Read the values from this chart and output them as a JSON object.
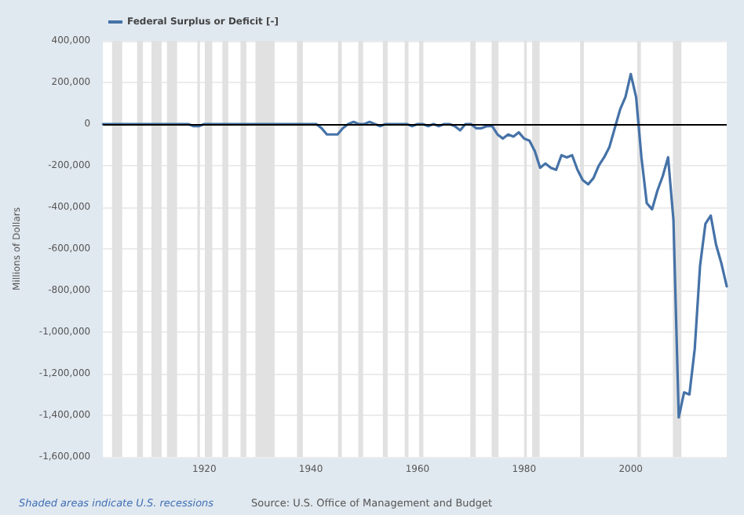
{
  "chart_data": {
    "type": "line",
    "ylabel": "Millions of Dollars",
    "x": [
      1901,
      1902,
      1903,
      1904,
      1905,
      1906,
      1907,
      1908,
      1909,
      1910,
      1911,
      1912,
      1913,
      1914,
      1915,
      1916,
      1917,
      1918,
      1919,
      1920,
      1921,
      1922,
      1923,
      1924,
      1925,
      1926,
      1927,
      1928,
      1929,
      1930,
      1931,
      1932,
      1933,
      1934,
      1935,
      1936,
      1937,
      1938,
      1939,
      1940,
      1941,
      1942,
      1943,
      1944,
      1945,
      1946,
      1947,
      1948,
      1949,
      1950,
      1951,
      1952,
      1953,
      1954,
      1955,
      1956,
      1957,
      1958,
      1959,
      1960,
      1961,
      1962,
      1963,
      1964,
      1965,
      1966,
      1967,
      1968,
      1969,
      1970,
      1971,
      1972,
      1973,
      1974,
      1975,
      1976,
      1977,
      1978,
      1979,
      1980,
      1981,
      1982,
      1983,
      1984,
      1985,
      1986,
      1987,
      1988,
      1989,
      1990,
      1991,
      1992,
      1993,
      1994,
      1995,
      1996,
      1997,
      1998,
      1999,
      2000,
      2001,
      2002,
      2003,
      2004,
      2005,
      2006,
      2007,
      2008,
      2009,
      2010,
      2011,
      2012,
      2013,
      2014,
      2015,
      2016,
      2017,
      2018
    ],
    "series": [
      {
        "name": "Federal Surplus or Deficit [-]",
        "color": "#4572a7",
        "values": [
          0,
          0,
          0,
          0,
          0,
          0,
          0,
          0,
          0,
          0,
          0,
          0,
          0,
          0,
          0,
          0,
          0,
          -10000,
          -10000,
          0,
          0,
          0,
          0,
          0,
          0,
          0,
          0,
          0,
          0,
          0,
          0,
          0,
          0,
          0,
          0,
          0,
          0,
          0,
          0,
          0,
          0,
          -20000,
          -50000,
          -50000,
          -50000,
          -20000,
          0,
          10000,
          0,
          0,
          10000,
          0,
          -10000,
          0,
          0,
          0,
          0,
          0,
          -10000,
          0,
          0,
          -10000,
          0,
          -10000,
          0,
          0,
          -10000,
          -30000,
          0,
          0,
          -20000,
          -20000,
          -10000,
          -10000,
          -50000,
          -70000,
          -50000,
          -60000,
          -40000,
          -70000,
          -80000,
          -130000,
          -210000,
          -190000,
          -210000,
          -220000,
          -150000,
          -160000,
          -150000,
          -220000,
          -270000,
          -290000,
          -260000,
          -200000,
          -160000,
          -110000,
          -20000,
          70000,
          130000,
          240000,
          130000,
          -160000,
          -380000,
          -410000,
          -320000,
          -250000,
          -160000,
          -460000,
          -1410000,
          -1290000,
          -1300000,
          -1080000,
          -680000,
          -480000,
          -440000,
          -580000,
          -670000,
          -780000
        ]
      }
    ],
    "xlim": [
      1901,
      2018
    ],
    "xticks": [
      1920,
      1940,
      1960,
      1980,
      2000
    ],
    "ylim": [
      -1600000,
      400000
    ],
    "yticks": [
      {
        "value": -1600000,
        "label": "-1,600,000"
      },
      {
        "value": -1400000,
        "label": "-1,400,000"
      },
      {
        "value": -1200000,
        "label": "-1,200,000"
      },
      {
        "value": -1000000,
        "label": "-1,000,000"
      },
      {
        "value": -800000,
        "label": "-800,000"
      },
      {
        "value": -600000,
        "label": "-600,000"
      },
      {
        "value": -400000,
        "label": "-400,000"
      },
      {
        "value": -200000,
        "label": "-200,000"
      },
      0,
      {
        "value": 200000,
        "label": "200,000"
      },
      {
        "value": 400000,
        "label": "400,000"
      }
    ],
    "ref_lines": [
      {
        "axis": "y",
        "value": 0,
        "color": "#000000"
      }
    ],
    "bands": [
      {
        "axis": "x",
        "from": 1902.7,
        "to": 1904.6,
        "color": "#e1e1e1"
      },
      {
        "axis": "x",
        "from": 1907.4,
        "to": 1908.5,
        "color": "#e1e1e1"
      },
      {
        "axis": "x",
        "from": 1910.1,
        "to": 1912.0,
        "color": "#e1e1e1"
      },
      {
        "axis": "x",
        "from": 1913.0,
        "to": 1914.9,
        "color": "#e1e1e1"
      },
      {
        "axis": "x",
        "from": 1918.7,
        "to": 1919.2,
        "color": "#e1e1e1"
      },
      {
        "axis": "x",
        "from": 1920.1,
        "to": 1921.5,
        "color": "#e1e1e1"
      },
      {
        "axis": "x",
        "from": 1923.4,
        "to": 1924.5,
        "color": "#e1e1e1"
      },
      {
        "axis": "x",
        "from": 1926.8,
        "to": 1927.9,
        "color": "#e1e1e1"
      },
      {
        "axis": "x",
        "from": 1929.6,
        "to": 1933.2,
        "color": "#e1e1e1"
      },
      {
        "axis": "x",
        "from": 1937.4,
        "to": 1938.5,
        "color": "#e1e1e1"
      },
      {
        "axis": "x",
        "from": 1945.1,
        "to": 1945.8,
        "color": "#e1e1e1"
      },
      {
        "axis": "x",
        "from": 1948.9,
        "to": 1949.8,
        "color": "#e1e1e1"
      },
      {
        "axis": "x",
        "from": 1953.5,
        "to": 1954.4,
        "color": "#e1e1e1"
      },
      {
        "axis": "x",
        "from": 1957.6,
        "to": 1958.3,
        "color": "#e1e1e1"
      },
      {
        "axis": "x",
        "from": 1960.3,
        "to": 1961.1,
        "color": "#e1e1e1"
      },
      {
        "axis": "x",
        "from": 1969.9,
        "to": 1970.9,
        "color": "#e1e1e1"
      },
      {
        "axis": "x",
        "from": 1973.9,
        "to": 1975.2,
        "color": "#e1e1e1"
      },
      {
        "axis": "x",
        "from": 1980.0,
        "to": 1980.5,
        "color": "#e1e1e1"
      },
      {
        "axis": "x",
        "from": 1981.5,
        "to": 1982.9,
        "color": "#e1e1e1"
      },
      {
        "axis": "x",
        "from": 1990.5,
        "to": 1991.2,
        "color": "#e1e1e1"
      },
      {
        "axis": "x",
        "from": 2001.2,
        "to": 2001.9,
        "color": "#e1e1e1"
      },
      {
        "axis": "x",
        "from": 2007.9,
        "to": 2009.5,
        "color": "#e1e1e1"
      }
    ],
    "grid": "y",
    "legend": "top left",
    "annotations": [
      "Shaded areas indicate U.S. recessions",
      "Source: U.S. Office of Management and Budget"
    ]
  }
}
